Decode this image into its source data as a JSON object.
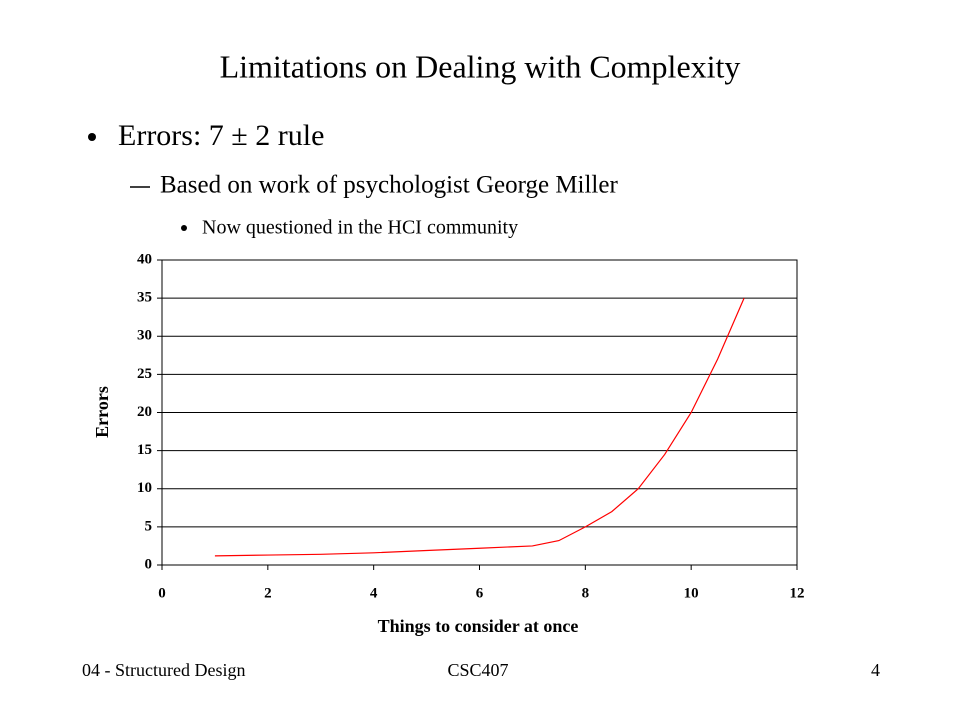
{
  "title": "Limitations on Dealing with Complexity",
  "bullet": "Errors: 7 ± 2 rule",
  "sub_bullet": "Based on work of psychologist George Miller",
  "sub_sub_bullet": "Now questioned in the HCI community",
  "footer": {
    "left": "04 - Structured Design",
    "center": "CSC407",
    "page": "4"
  },
  "chart_data": {
    "type": "line",
    "xlabel": "Things to consider at once",
    "ylabel": "Errors",
    "x": [
      1,
      2,
      3,
      4,
      5,
      6,
      7,
      7.5,
      8,
      8.5,
      9,
      9.5,
      10,
      10.5,
      11
    ],
    "values": [
      1.2,
      1.3,
      1.4,
      1.6,
      1.9,
      2.2,
      2.5,
      3.2,
      5,
      7,
      10,
      14.5,
      20,
      27,
      35
    ],
    "color": "#ff0000",
    "xlim": [
      0,
      12
    ],
    "xticks": [
      0,
      2,
      4,
      6,
      8,
      10,
      12
    ],
    "ylim": [
      0,
      40
    ],
    "yticks": [
      0,
      5,
      10,
      15,
      20,
      25,
      30,
      35,
      40
    ],
    "grid": true
  }
}
